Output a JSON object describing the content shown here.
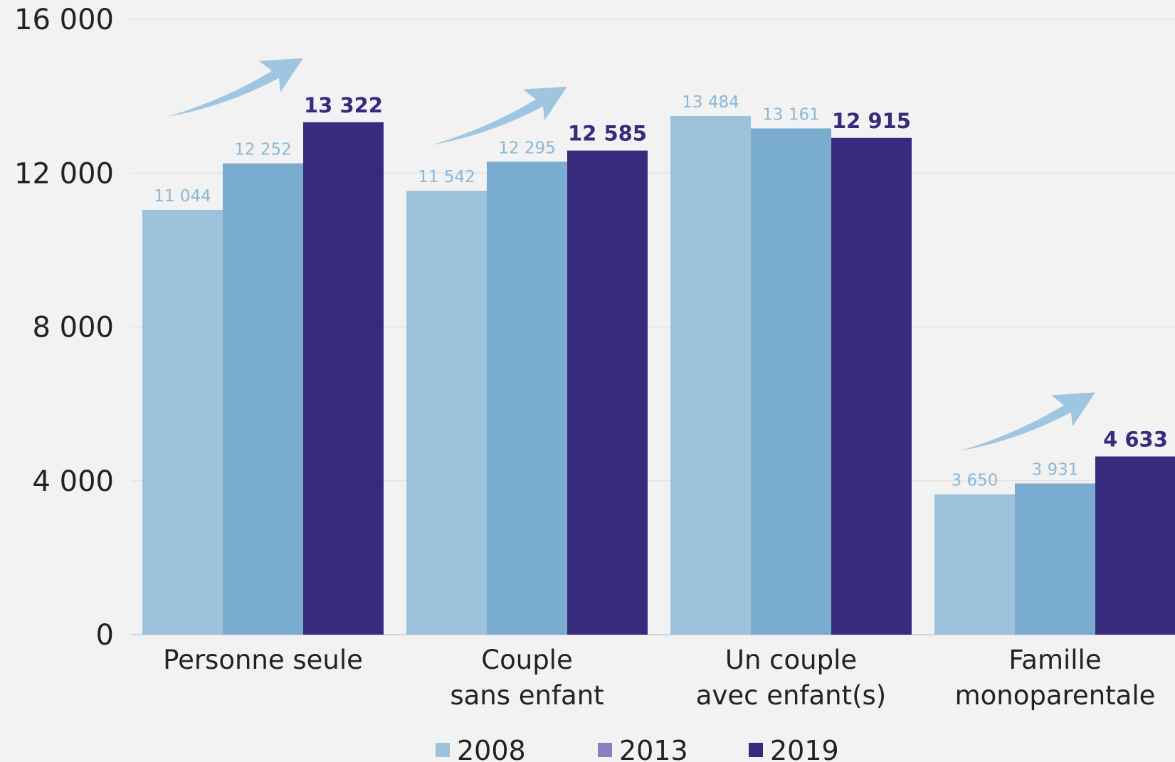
{
  "chart_data": {
    "type": "bar",
    "categories": [
      [
        "Personne seule"
      ],
      [
        "Couple",
        "sans enfant"
      ],
      [
        "Un couple",
        "avec enfant(s)"
      ],
      [
        "Famille",
        "monoparentale"
      ]
    ],
    "series": [
      {
        "name": "2008",
        "color": "#9dc3dc",
        "label_color": "#8ab8d6",
        "values": [
          11044,
          11542,
          13484,
          3650
        ],
        "labels": [
          "11 044",
          "11 542",
          "13 484",
          "3 650"
        ]
      },
      {
        "name": "2013",
        "color": "#7aaccf",
        "legend_color": "#8a7fc0",
        "label_color": "#8ab8d6",
        "values": [
          12252,
          12295,
          13161,
          3931
        ],
        "labels": [
          "12 252",
          "12 295",
          "13 161",
          "3 931"
        ]
      },
      {
        "name": "2019",
        "color": "#372b7e",
        "label_color": "#372b7e",
        "values": [
          13322,
          12585,
          12915,
          4633
        ],
        "labels": [
          "13 322",
          "12 585",
          "12 915",
          "4 633"
        ]
      }
    ],
    "ylim": [
      0,
      16000
    ],
    "yticks": [
      0,
      4000,
      8000,
      12000,
      16000
    ],
    "ytick_labels": [
      "0",
      "4 000",
      "8 000",
      "12 000",
      "16 000"
    ],
    "grid": true,
    "legend_position": "bottom",
    "arrow_color": "#9fc6e0",
    "trend_arrows_on_categories": [
      0,
      1,
      3
    ]
  }
}
